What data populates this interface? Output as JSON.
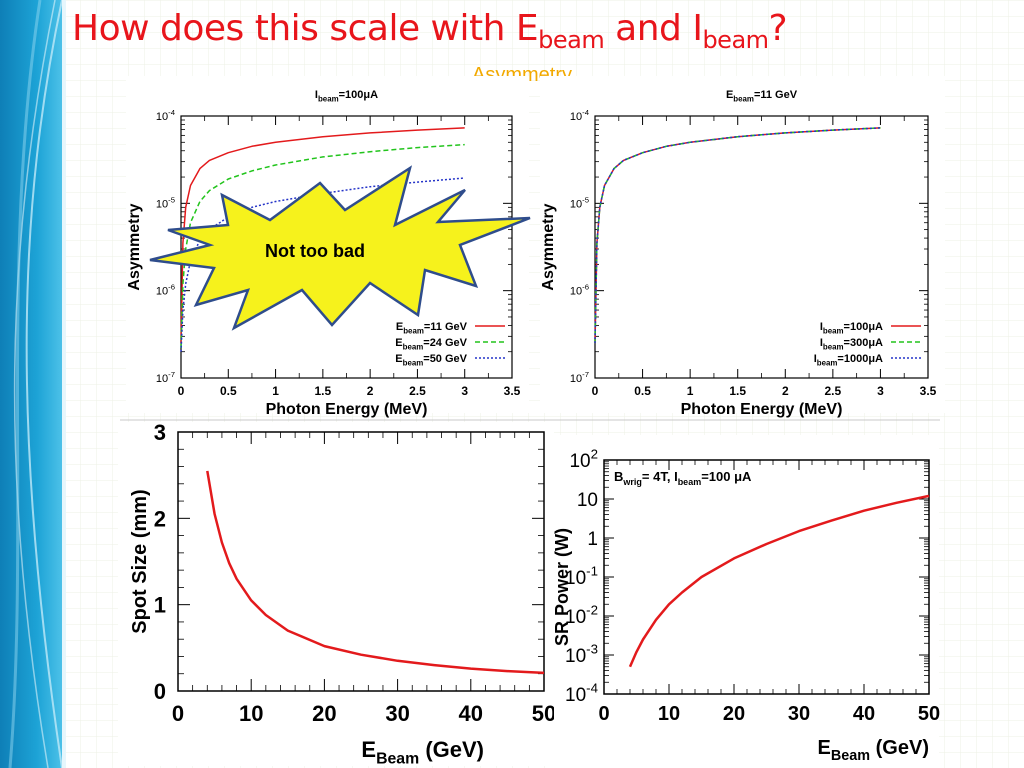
{
  "slide": {
    "title_parts": [
      "How does this scale with E",
      "beam",
      " and I",
      "beam",
      "?"
    ],
    "subtitle": "Asymmetry",
    "callout": "Not too bad",
    "colors": {
      "title": "#e8151b",
      "subtitle": "#f2a900",
      "callout_fill": "#f6f21c",
      "callout_stroke": "#2f4d8c",
      "sidebar": "#1da3d6"
    }
  },
  "chart_data": [
    {
      "type": "line",
      "title": "I_beam=100μA",
      "title_main": "I",
      "title_sub": "beam",
      "title_rest": "=100μA",
      "xlabel": "Photon Energy (MeV)",
      "ylabel": "Asymmetry",
      "xlim": [
        0,
        3.5
      ],
      "ylim": [
        1e-07,
        0.0001
      ],
      "yscale": "log",
      "xticks": [
        "0",
        "0.5",
        "1",
        "1.5",
        "2",
        "2.5",
        "3",
        "3.5"
      ],
      "yticks": [
        {
          "base": "10",
          "exp": "-7"
        },
        {
          "base": "10",
          "exp": "-6"
        },
        {
          "base": "10",
          "exp": "-5"
        },
        {
          "base": "10",
          "exp": "-4"
        }
      ],
      "legend_position": "bottom-right",
      "series": [
        {
          "name": "E_beam=11 GeV",
          "label_main": "E",
          "label_sub": "beam",
          "label_rest": "=11 GeV",
          "color": "#e31a1c",
          "dash": "solid",
          "x": [
            0.0,
            0.02,
            0.05,
            0.1,
            0.2,
            0.3,
            0.5,
            0.75,
            1.0,
            1.5,
            2.0,
            2.5,
            3.0
          ],
          "y": [
            2.5e-07,
            3.5e-06,
            9e-06,
            1.6e-05,
            2.5e-05,
            3.1e-05,
            3.8e-05,
            4.5e-05,
            5e-05,
            5.8e-05,
            6.4e-05,
            6.9e-05,
            7.3e-05
          ]
        },
        {
          "name": "E_beam=24 GeV",
          "label_main": "E",
          "label_sub": "beam",
          "label_rest": "=24 GeV",
          "color": "#22c41c",
          "dash": "5,3",
          "x": [
            0.0,
            0.02,
            0.05,
            0.1,
            0.2,
            0.3,
            0.5,
            0.75,
            1.0,
            1.5,
            2.0,
            2.5,
            3.0
          ],
          "y": [
            2.2e-07,
            1.2e-06,
            3e-06,
            6e-06,
            1.05e-05,
            1.4e-05,
            1.9e-05,
            2.35e-05,
            2.75e-05,
            3.4e-05,
            3.9e-05,
            4.35e-05,
            4.7e-05
          ]
        },
        {
          "name": "E_beam=50 GeV",
          "label_main": "E",
          "label_sub": "beam",
          "label_rest": "=50 GeV",
          "color": "#2433c8",
          "dash": "2,2",
          "x": [
            0.0,
            0.02,
            0.05,
            0.1,
            0.2,
            0.3,
            0.5,
            0.75,
            1.0,
            1.5,
            2.0,
            2.5,
            3.0
          ],
          "y": [
            2e-07,
            6e-07,
            1.2e-06,
            2.2e-06,
            3.8e-06,
            5e-06,
            7e-06,
            9e-06,
            1.05e-05,
            1.3e-05,
            1.55e-05,
            1.75e-05,
            1.95e-05
          ]
        }
      ]
    },
    {
      "type": "line",
      "title": "E_beam=11 GeV",
      "title_main": "E",
      "title_sub": "beam",
      "title_rest": "=11 GeV",
      "xlabel": "Photon Energy (MeV)",
      "ylabel": "Asymmetry",
      "xlim": [
        0,
        3.5
      ],
      "ylim": [
        1e-07,
        0.0001
      ],
      "yscale": "log",
      "xticks": [
        "0",
        "0.5",
        "1",
        "1.5",
        "2",
        "2.5",
        "3",
        "3.5"
      ],
      "yticks": [
        {
          "base": "10",
          "exp": "-7"
        },
        {
          "base": "10",
          "exp": "-6"
        },
        {
          "base": "10",
          "exp": "-5"
        },
        {
          "base": "10",
          "exp": "-4"
        }
      ],
      "legend_position": "bottom-right",
      "series": [
        {
          "name": "I_beam=100μA",
          "label_main": "I",
          "label_sub": "beam",
          "label_rest": "=100μA",
          "color": "#e31a1c",
          "dash": "solid",
          "x": [
            0.0,
            0.02,
            0.05,
            0.1,
            0.2,
            0.3,
            0.5,
            0.75,
            1.0,
            1.5,
            2.0,
            2.5,
            3.0
          ],
          "y": [
            2.5e-07,
            3.5e-06,
            9e-06,
            1.6e-05,
            2.5e-05,
            3.1e-05,
            3.8e-05,
            4.5e-05,
            5e-05,
            5.8e-05,
            6.4e-05,
            6.9e-05,
            7.3e-05
          ]
        },
        {
          "name": "I_beam=300μA",
          "label_main": "I",
          "label_sub": "beam",
          "label_rest": "=300μA",
          "color": "#22c41c",
          "dash": "5,3",
          "x": [
            0.0,
            0.02,
            0.05,
            0.1,
            0.2,
            0.3,
            0.5,
            0.75,
            1.0,
            1.5,
            2.0,
            2.5,
            3.0
          ],
          "y": [
            2.5e-07,
            3.5e-06,
            9e-06,
            1.6e-05,
            2.5e-05,
            3.1e-05,
            3.8e-05,
            4.5e-05,
            5e-05,
            5.8e-05,
            6.4e-05,
            6.9e-05,
            7.3e-05
          ]
        },
        {
          "name": "I_beam=1000μA",
          "label_main": "I",
          "label_sub": "beam",
          "label_rest": "=1000μA",
          "color": "#2433c8",
          "dash": "2,2",
          "x": [
            0.0,
            0.02,
            0.05,
            0.1,
            0.2,
            0.3,
            0.5,
            0.75,
            1.0,
            1.5,
            2.0,
            2.5,
            3.0
          ],
          "y": [
            2.5e-07,
            3.5e-06,
            9e-06,
            1.6e-05,
            2.5e-05,
            3.1e-05,
            3.8e-05,
            4.5e-05,
            5e-05,
            5.8e-05,
            6.4e-05,
            6.9e-05,
            7.3e-05
          ]
        }
      ]
    },
    {
      "type": "line",
      "title": "",
      "xlabel": "E_Beam (GeV)",
      "xlabel_main": "E",
      "xlabel_sub": "Beam",
      "xlabel_rest": " (GeV)",
      "ylabel": "Spot Size (mm)",
      "xlim": [
        0,
        50
      ],
      "ylim": [
        0,
        3
      ],
      "xticks": [
        "0",
        "10",
        "20",
        "30",
        "40",
        "50"
      ],
      "yticks": [
        "0",
        "1",
        "2",
        "3"
      ],
      "series": [
        {
          "color": "#e31a1c",
          "dash": "solid",
          "x": [
            4,
            5,
            6,
            7,
            8,
            10,
            12,
            15,
            20,
            25,
            30,
            35,
            40,
            45,
            50
          ],
          "y": [
            2.55,
            2.05,
            1.72,
            1.48,
            1.3,
            1.05,
            0.88,
            0.7,
            0.52,
            0.42,
            0.35,
            0.3,
            0.26,
            0.23,
            0.21
          ]
        }
      ]
    },
    {
      "type": "line",
      "title": "B_wrig= 4T, I_beam=100 μA",
      "annotation_parts": [
        "B",
        "wrig",
        "= 4T, I",
        "beam",
        "=100 μA"
      ],
      "xlabel": "E_Beam (GeV)",
      "xlabel_main": "E",
      "xlabel_sub": "Beam",
      "xlabel_rest": " (GeV)",
      "ylabel": "SR Power (W)",
      "xlim": [
        0,
        50
      ],
      "ylim": [
        0.0001,
        100
      ],
      "yscale": "log",
      "xticks": [
        "0",
        "10",
        "20",
        "30",
        "40",
        "50"
      ],
      "yticks": [
        {
          "base": "10",
          "exp": "-4"
        },
        {
          "base": "10",
          "exp": "-3"
        },
        {
          "base": "10",
          "exp": "-2"
        },
        {
          "base": "10",
          "exp": "-1"
        },
        {
          "base": "1",
          "exp": ""
        },
        {
          "base": "10",
          "exp": ""
        },
        {
          "base": "10",
          "exp": "2"
        }
      ],
      "series": [
        {
          "color": "#e31a1c",
          "dash": "solid",
          "x": [
            4,
            5,
            6,
            8,
            10,
            12,
            15,
            20,
            25,
            30,
            35,
            40,
            45,
            50
          ],
          "y": [
            0.0005,
            0.0012,
            0.0025,
            0.008,
            0.02,
            0.04,
            0.1,
            0.3,
            0.7,
            1.5,
            2.8,
            5,
            8,
            12
          ]
        }
      ]
    }
  ]
}
